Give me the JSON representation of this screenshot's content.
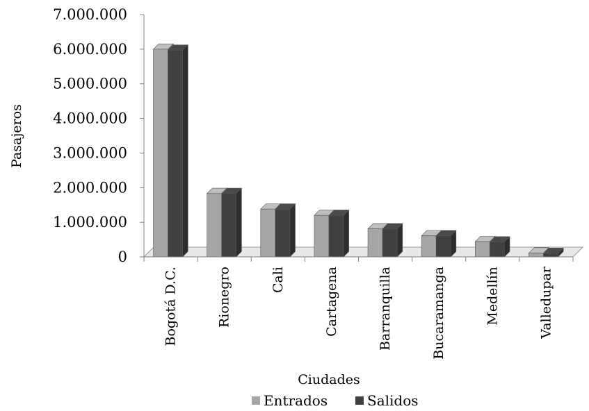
{
  "chart_data": {
    "type": "bar",
    "style": "3d-clustered-column",
    "categories": [
      "Bogotá D.C.",
      "Rionegro",
      "Cali",
      "Cartagena",
      "Barranquilla",
      "Bucaramanga",
      "Medellín",
      "Valledupar"
    ],
    "series": [
      {
        "name": "Entrados",
        "color": "#a6a6a6",
        "values": [
          6000000,
          1830000,
          1380000,
          1200000,
          810000,
          610000,
          440000,
          110000
        ]
      },
      {
        "name": "Salidos",
        "color": "#404040",
        "values": [
          5970000,
          1830000,
          1380000,
          1200000,
          810000,
          610000,
          430000,
          100000
        ]
      }
    ],
    "xlabel": "Ciudades",
    "ylabel": "Pasajeros",
    "ylim": [
      0,
      7000000
    ],
    "yticks": [
      0,
      1000000,
      2000000,
      3000000,
      4000000,
      5000000,
      6000000,
      7000000
    ],
    "ytick_labels": [
      "0",
      "1.000.000",
      "2.000.000",
      "3.000.000",
      "4.000.000",
      "5.000.000",
      "6.000.000",
      "7.000.000"
    ],
    "grid": false,
    "legend": "bottom"
  }
}
